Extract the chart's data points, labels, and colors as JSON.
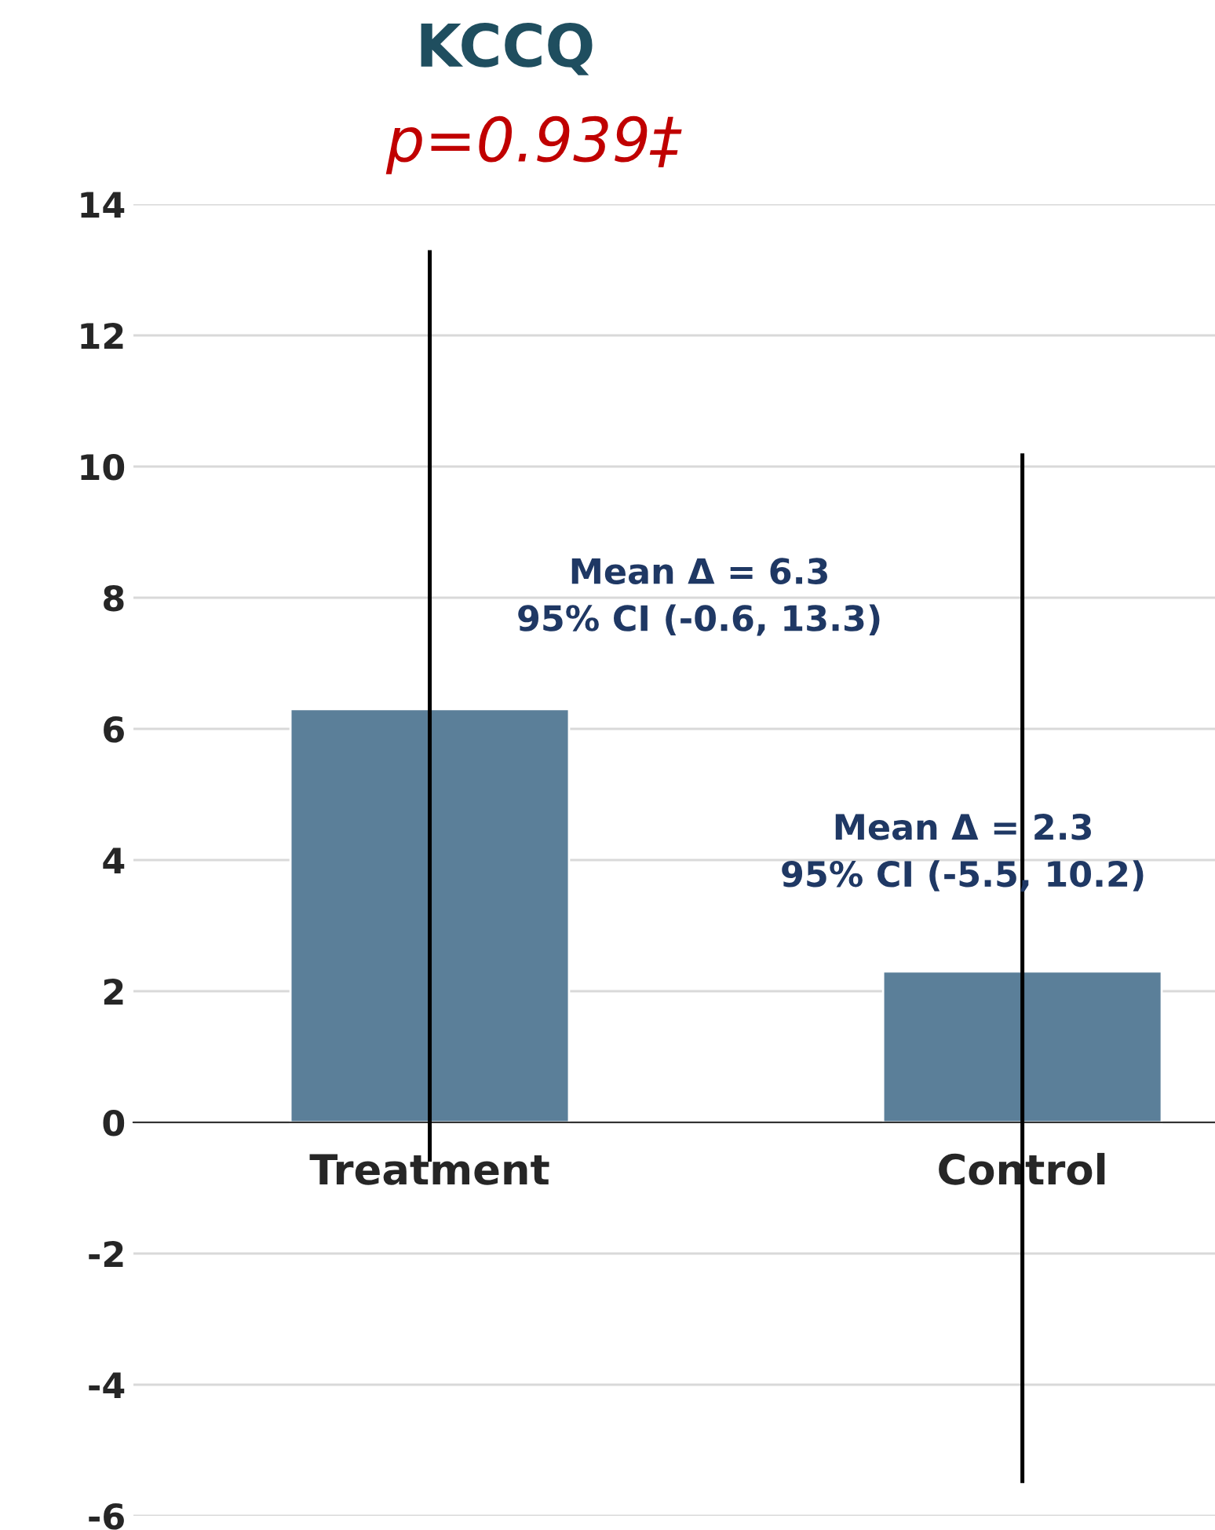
{
  "chart_data": {
    "type": "bar",
    "title": "KCCQ",
    "subtitle": "p=0.939‡",
    "categories": [
      "Treatment",
      "Control"
    ],
    "values": [
      6.3,
      2.3
    ],
    "color": "#5b7f99",
    "errors": [
      [
        -0.6,
        13.3
      ],
      [
        -5.5,
        10.2
      ]
    ],
    "ylim": [
      -6,
      14
    ],
    "yticks": [
      -6,
      -4,
      -2,
      0,
      2,
      4,
      6,
      8,
      10,
      12,
      14
    ],
    "grid": "y",
    "annotations": [
      "Mean Δ = 6.3\n95% CI (-0.6, 13.3)",
      "Mean Δ = 2.3\n95% CI (-5.5, 10.2)"
    ]
  }
}
